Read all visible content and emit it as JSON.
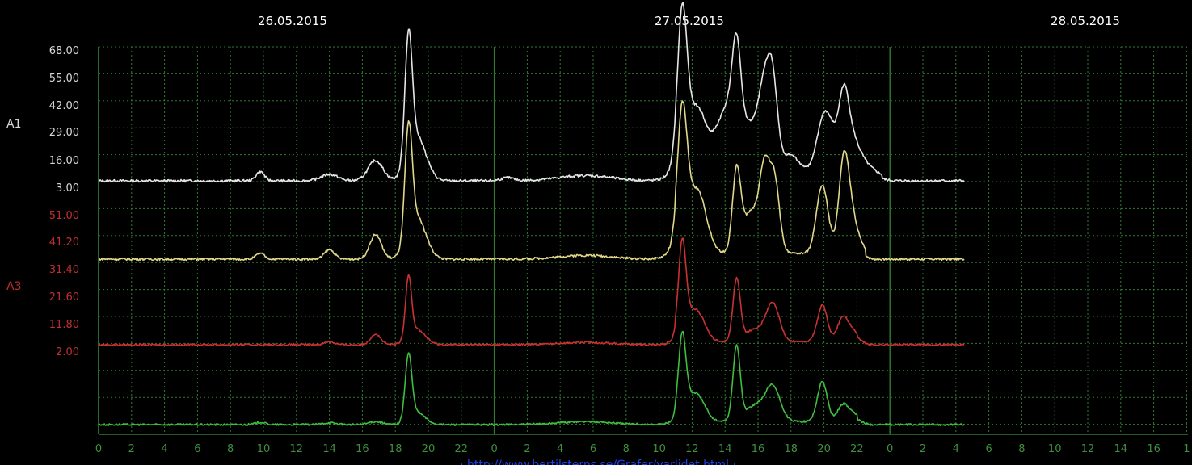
{
  "chart_data": {
    "type": "line",
    "title": "",
    "xlabel": "",
    "ylabel": "",
    "dates": [
      "26.05.2015",
      "27.05.2015",
      "28.05.2015"
    ],
    "x_tick_labels": [
      "0",
      "2",
      "4",
      "6",
      "8",
      "10",
      "12",
      "14",
      "16",
      "18",
      "20",
      "22",
      "0",
      "2",
      "4",
      "6",
      "8",
      "10",
      "12",
      "14",
      "16",
      "18",
      "20",
      "22",
      "0",
      "2",
      "4",
      "6",
      "8",
      "10",
      "12",
      "14",
      "16",
      "1"
    ],
    "xlim_hours": [
      0,
      65.5
    ],
    "grid": true,
    "axes": [
      {
        "label": "A1",
        "color": "#d8d8d8",
        "ticks": [
          "68.00",
          "55.00",
          "42.00",
          "29.00",
          "16.00",
          "3.00"
        ]
      },
      {
        "label": "A3",
        "color": "#c03030",
        "ticks": [
          "51.00",
          "41.20",
          "31.40",
          "21.60",
          "11.80",
          "2.00"
        ]
      }
    ],
    "series": [
      {
        "color": "#e6e6e6",
        "baseline": 3,
        "scale": [
          3,
          68
        ],
        "peaks": [
          [
            9.8,
            4.5,
            0.25
          ],
          [
            14.0,
            3.2,
            0.5
          ],
          [
            16.8,
            10,
            0.45
          ],
          [
            18.8,
            60,
            0.22
          ],
          [
            19.3,
            22,
            0.55
          ],
          [
            24.8,
            1.5,
            0.4
          ],
          [
            29.5,
            2.6,
            1.6
          ],
          [
            35.4,
            65,
            0.28
          ],
          [
            35.9,
            25,
            0.7
          ],
          [
            36.5,
            14,
            0.45
          ],
          [
            37.6,
            17,
            0.5
          ],
          [
            38.3,
            20,
            0.45
          ],
          [
            38.7,
            38,
            0.25
          ],
          [
            39.4,
            26,
            0.8
          ],
          [
            40.4,
            33,
            0.35
          ],
          [
            40.9,
            38,
            0.3
          ],
          [
            41.9,
            10,
            0.5
          ],
          [
            42.8,
            2.8,
            0.5
          ],
          [
            43.9,
            20,
            0.4
          ],
          [
            44.4,
            18,
            0.45
          ],
          [
            45.2,
            28,
            0.3
          ],
          [
            45.6,
            18,
            0.5
          ],
          [
            46.5,
            5,
            0.6
          ]
        ],
        "tail": [
          35.0,
          47.5,
          2
        ]
      },
      {
        "color": "#e2d88a",
        "baseline": 0,
        "scale": [
          0,
          51
        ],
        "peaks": [
          [
            9.8,
            3,
            0.25
          ],
          [
            14.0,
            5,
            0.3
          ],
          [
            16.8,
            13,
            0.35
          ],
          [
            18.8,
            58,
            0.22
          ],
          [
            19.3,
            22,
            0.55
          ],
          [
            29.5,
            2,
            1.6
          ],
          [
            35.4,
            60,
            0.28
          ],
          [
            35.9,
            25,
            0.7
          ],
          [
            36.5,
            14,
            0.45
          ],
          [
            38.7,
            42,
            0.25
          ],
          [
            39.6,
            22,
            0.5
          ],
          [
            40.4,
            40,
            0.3
          ],
          [
            41.0,
            38,
            0.3
          ],
          [
            43.9,
            36,
            0.35
          ],
          [
            45.2,
            40,
            0.3
          ],
          [
            45.6,
            20,
            0.45
          ]
        ],
        "tail": [
          35.0,
          46.5,
          3
        ]
      },
      {
        "color": "#c83232",
        "baseline": 0,
        "scale": [
          0,
          70
        ],
        "peaks": [
          [
            14.0,
            2,
            0.3
          ],
          [
            16.8,
            7,
            0.3
          ],
          [
            18.8,
            40,
            0.18
          ],
          [
            19.3,
            10,
            0.5
          ],
          [
            29.5,
            1.5,
            1.6
          ],
          [
            35.4,
            55,
            0.22
          ],
          [
            35.9,
            18,
            0.6
          ],
          [
            36.5,
            7,
            0.4
          ],
          [
            38.7,
            40,
            0.22
          ],
          [
            39.8,
            8,
            0.6
          ],
          [
            40.9,
            24,
            0.4
          ],
          [
            43.9,
            24,
            0.3
          ],
          [
            45.1,
            12,
            0.3
          ],
          [
            45.6,
            8,
            0.45
          ]
        ],
        "tail": [
          35.0,
          46.0,
          2
        ]
      },
      {
        "color": "#3fbf3f",
        "baseline": 0,
        "scale": [
          0,
          70
        ],
        "peaks": [
          [
            9.8,
            1.5,
            0.3
          ],
          [
            14.0,
            1.2,
            0.4
          ],
          [
            16.8,
            2,
            0.4
          ],
          [
            18.8,
            42,
            0.2
          ],
          [
            19.3,
            8,
            0.5
          ],
          [
            29.5,
            2,
            1.6
          ],
          [
            35.4,
            48,
            0.22
          ],
          [
            35.9,
            15,
            0.6
          ],
          [
            36.5,
            7,
            0.4
          ],
          [
            38.7,
            48,
            0.22
          ],
          [
            39.8,
            10,
            0.6
          ],
          [
            40.9,
            22,
            0.45
          ],
          [
            43.9,
            26,
            0.3
          ],
          [
            45.1,
            8,
            0.3
          ],
          [
            45.6,
            6,
            0.45
          ]
        ],
        "tail": [
          35.0,
          46.0,
          2
        ]
      }
    ],
    "footer_text": "· http://www.bertilsterns.se/Grafer/varlidet.html ·"
  }
}
